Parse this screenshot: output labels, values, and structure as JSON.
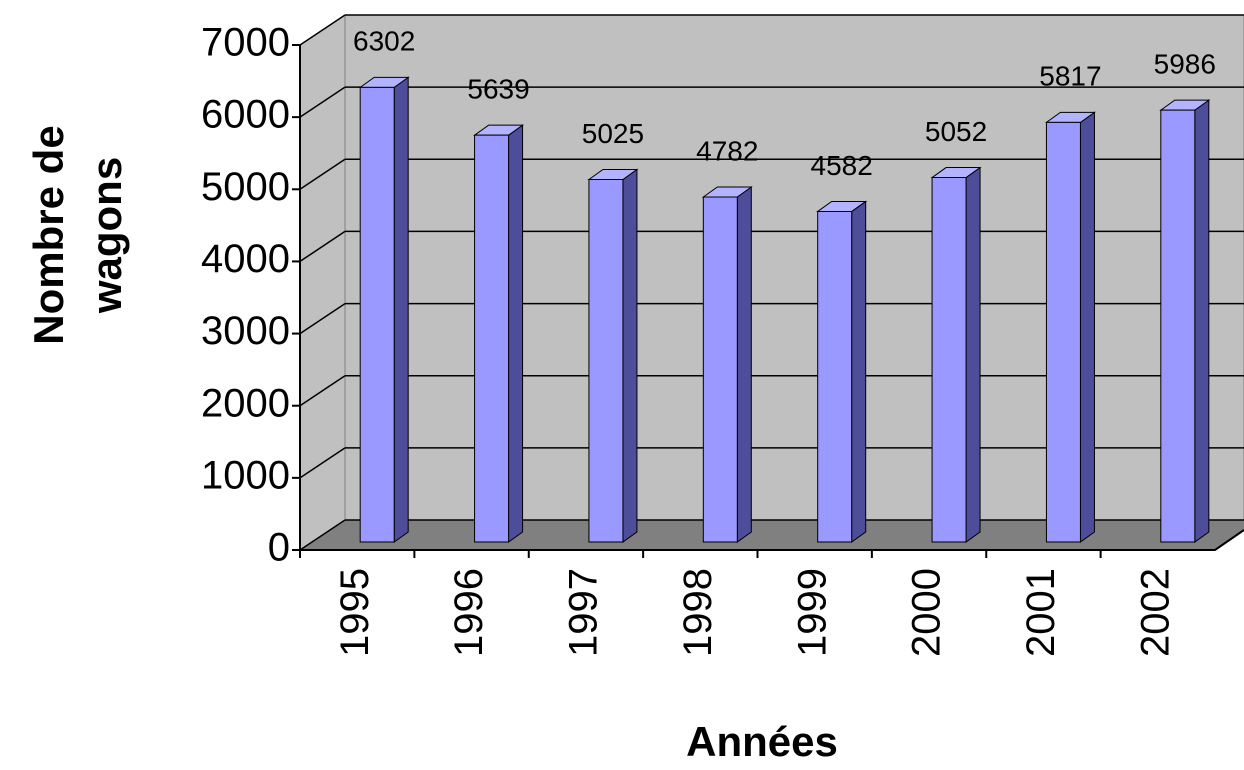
{
  "chart_data": {
    "type": "bar3d",
    "y_label": [
      "Nombre de",
      "wagons"
    ],
    "x_label": "Années",
    "categories": [
      "1995",
      "1996",
      "1997",
      "1998",
      "1999",
      "2000",
      "2001",
      "2002"
    ],
    "values": [
      6302,
      5639,
      5025,
      4782,
      4582,
      5052,
      5817,
      5986
    ],
    "color": "#9999ff",
    "ylim": [
      0,
      7000
    ],
    "yticks": [
      0,
      1000,
      2000,
      3000,
      4000,
      5000,
      6000,
      7000
    ],
    "grid": true
  }
}
